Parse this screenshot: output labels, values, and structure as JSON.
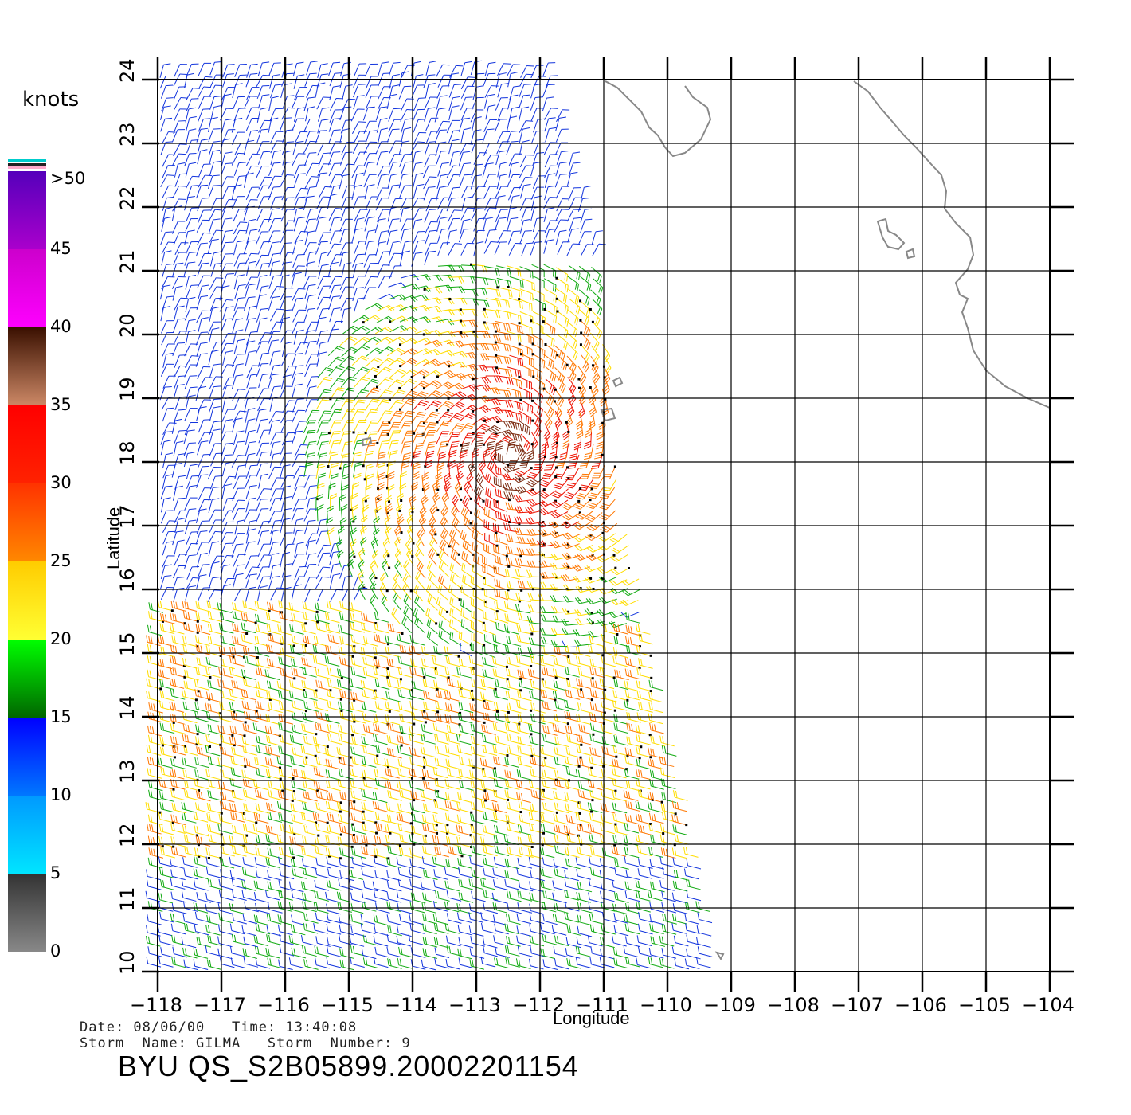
{
  "map": {
    "xlabel": "Longitude",
    "ylabel": "Latitude",
    "lon_ticks": [
      "−118",
      "−117",
      "−116",
      "−115",
      "−114",
      "−113",
      "−112",
      "−111",
      "−110",
      "−109",
      "−108",
      "−107",
      "−106",
      "−105",
      "−104"
    ],
    "lat_ticks": [
      "10",
      "11",
      "12",
      "13",
      "14",
      "15",
      "16",
      "17",
      "18",
      "19",
      "20",
      "21",
      "22",
      "23",
      "24"
    ],
    "lon_range": [
      -118,
      -104
    ],
    "lat_range": [
      10,
      24
    ],
    "grid": true
  },
  "colorbar": {
    "unit_label": "knots",
    "labels": [
      "0",
      "5",
      "10",
      "15",
      "20",
      "25",
      "30",
      "35",
      "40",
      "45",
      ">50"
    ],
    "bands": [
      {
        "from": 0,
        "to": 5,
        "colors": [
          "#888888",
          "#333333"
        ]
      },
      {
        "from": 5,
        "to": 10,
        "colors": [
          "#00e5ff",
          "#0099ff"
        ]
      },
      {
        "from": 10,
        "to": 15,
        "colors": [
          "#0077ff",
          "#0000ff"
        ]
      },
      {
        "from": 15,
        "to": 20,
        "colors": [
          "#006600",
          "#00ff00"
        ]
      },
      {
        "from": 20,
        "to": 25,
        "colors": [
          "#ffff33",
          "#ffcc00"
        ]
      },
      {
        "from": 25,
        "to": 30,
        "colors": [
          "#ff8800",
          "#ff3300"
        ]
      },
      {
        "from": 30,
        "to": 35,
        "colors": [
          "#ff2200",
          "#ff0000"
        ]
      },
      {
        "from": 35,
        "to": 40,
        "colors": [
          "#cc8866",
          "#3a1000"
        ]
      },
      {
        "from": 40,
        "to": 45,
        "colors": [
          "#ff00ff",
          "#cc00cc"
        ]
      },
      {
        "from": 45,
        "to": 50,
        "colors": [
          "#aa00cc",
          "#5500bb"
        ]
      }
    ]
  },
  "meta": {
    "date_line": "Date: 08/06/00   Time: 13:40:08",
    "storm_line": "Storm  Name: GILMA   Storm  Number: 9",
    "file_id": "BYU  QS_S2B05899.20002201154"
  }
}
